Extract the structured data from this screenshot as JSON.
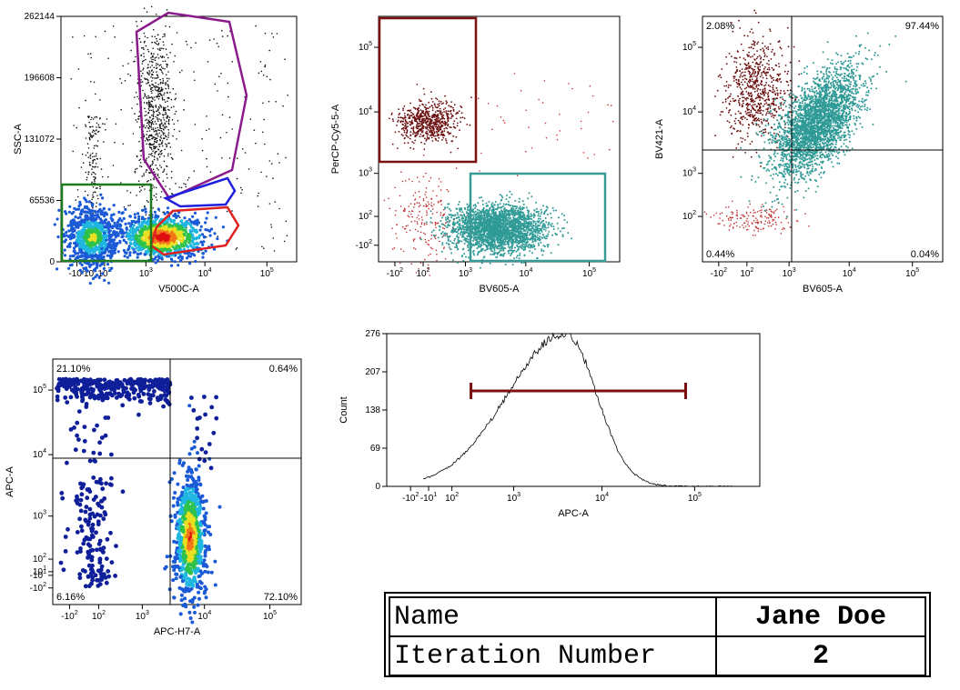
{
  "chart_data": [
    {
      "type": "scatter",
      "subtype": "density-dot-plot",
      "xlabel": "V500C-A",
      "ylabel": "SSC-A",
      "x_scale": "biexponential",
      "y_scale": "linear",
      "x_ticks": [
        "-10^2",
        "-10^1",
        "10^2",
        "10^3",
        "10^4",
        "10^5"
      ],
      "y_ticks": [
        "0",
        "65536",
        "131072",
        "196608",
        "262144"
      ],
      "ylim": [
        0,
        262144
      ],
      "gates": [
        {
          "shape": "polygon",
          "color": "#8b1a8b"
        },
        {
          "shape": "polygon",
          "color": "#1f1fdd"
        },
        {
          "shape": "polygon",
          "color": "#e02020"
        },
        {
          "shape": "rectangle",
          "color": "#1e7a1e"
        }
      ],
      "populations": [
        {
          "x": 0.2,
          "y": 16000,
          "style": "density"
        },
        {
          "x": 1500,
          "y": 12000,
          "style": "density"
        },
        {
          "x": 1200,
          "y": 160000,
          "style": "dots"
        }
      ]
    },
    {
      "type": "scatter",
      "subtype": "dot-plot",
      "xlabel": "BV605-A",
      "ylabel": "PerCP-Cy5-5-A",
      "x_scale": "biexponential",
      "y_scale": "biexponential",
      "x_ticks": [
        "-10^2",
        "10^2",
        "10^3",
        "10^4",
        "10^5"
      ],
      "y_ticks": [
        "-10^2",
        "10^2",
        "10^3",
        "10^4",
        "10^5"
      ],
      "gates": [
        {
          "shape": "rectangle",
          "color": "#7a1010"
        },
        {
          "shape": "rectangle",
          "color": "#3a9a98"
        }
      ],
      "populations": [
        {
          "x": 30,
          "y": 8000,
          "color": "#6b0f0f"
        },
        {
          "x": 5000,
          "y": 60,
          "color": "#2f9a96"
        },
        {
          "x": 30,
          "y": 50,
          "color": "#c03030"
        }
      ]
    },
    {
      "type": "scatter",
      "subtype": "quadrant-plot",
      "xlabel": "BV605-A",
      "ylabel": "BV421-A",
      "x_scale": "biexponential",
      "y_scale": "biexponential",
      "x_ticks": [
        "-10^2",
        "10^2",
        "10^3",
        "10^4",
        "10^5"
      ],
      "y_ticks": [
        "10^2",
        "10^3",
        "10^4",
        "10^5"
      ],
      "quadrants": {
        "upper_left": "2.08%",
        "upper_right": "97.44%",
        "lower_left": "0.44%",
        "lower_right": "0.04%"
      },
      "populations": [
        {
          "x": 30,
          "y": 30000,
          "color": "#6b0f0f"
        },
        {
          "x": 6000,
          "y": 15000,
          "color": "#2f9a96"
        },
        {
          "x": 30,
          "y": 120,
          "color": "#c03030"
        }
      ]
    },
    {
      "type": "scatter",
      "subtype": "quadrant-density-plot",
      "xlabel": "APC-H7-A",
      "ylabel": "APC-A",
      "x_scale": "biexponential",
      "y_scale": "biexponential",
      "x_ticks": [
        "-10^2",
        "10^2",
        "10^3",
        "10^4",
        "10^5"
      ],
      "y_ticks": [
        "-10^2",
        "-10^1",
        "10^1",
        "10^2",
        "10^3",
        "10^4",
        "10^5"
      ],
      "quadrants": {
        "upper_left": "21.10%",
        "upper_right": "0.64%",
        "lower_left": "6.16%",
        "lower_right": "72.10%"
      },
      "populations": [
        {
          "x": 50,
          "y": 100000,
          "style": "dots"
        },
        {
          "x": 50,
          "y": 100,
          "style": "dots"
        },
        {
          "x": 6000,
          "y": 300,
          "style": "density"
        }
      ]
    },
    {
      "type": "line",
      "subtype": "histogram",
      "xlabel": "APC-A",
      "ylabel": "Count",
      "x_scale": "biexponential",
      "x_ticks": [
        "-10^2",
        "-10^1",
        "10^2",
        "10^3",
        "10^4",
        "10^5"
      ],
      "y_ticks": [
        "0",
        "69",
        "138",
        "207",
        "276"
      ],
      "ylim": [
        0,
        276
      ],
      "peak": {
        "x": 4000,
        "y": 276
      },
      "range_gate": {
        "x_start": 250,
        "x_end": 80000,
        "color": "#7a1010"
      }
    }
  ],
  "info": {
    "rows": [
      {
        "label": "Name",
        "value": "Jane Doe"
      },
      {
        "label": "Iteration Number",
        "value": "2"
      }
    ]
  }
}
